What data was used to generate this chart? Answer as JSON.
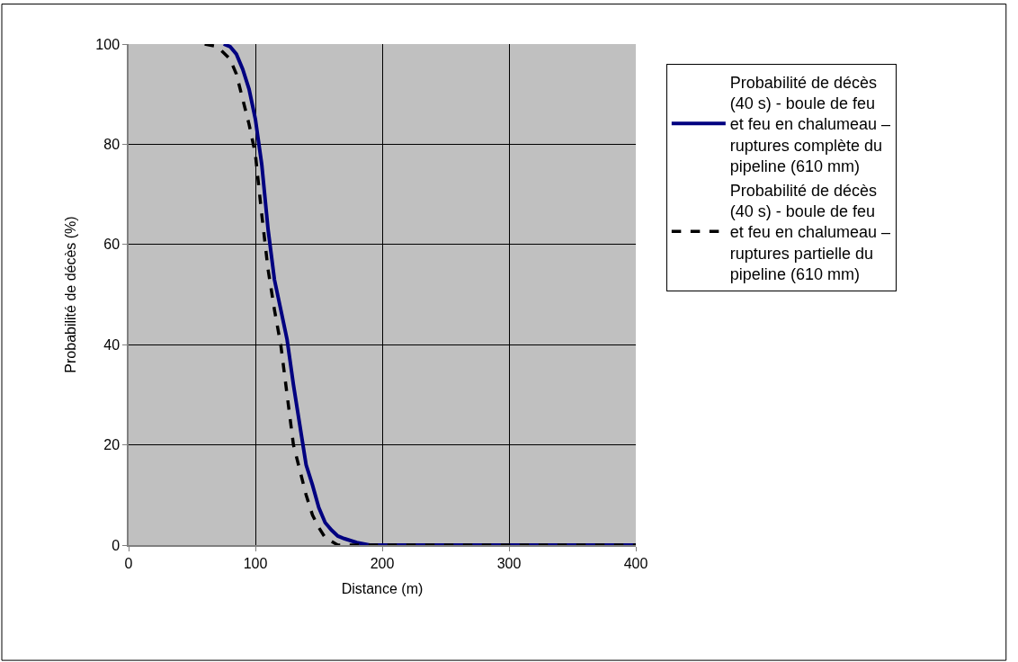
{
  "chart_data": {
    "type": "line",
    "xlabel": "Distance (m)",
    "ylabel": "Probabilité de décès (%)",
    "xlim": [
      0,
      400
    ],
    "xticks": [
      0,
      100,
      200,
      300,
      400
    ],
    "ylim": [
      0,
      100
    ],
    "yticks": [
      0,
      20,
      40,
      60,
      80,
      100
    ],
    "grid": true,
    "legend": "right",
    "marker": "none",
    "series": [
      {
        "name": "Probabilité de décès (40 s) - boule de feu et feu en chalumeau – ruptures complète du pipeline (610 mm)",
        "color": "#000080",
        "line_style": "solid",
        "x": [
          75,
          80,
          85,
          90,
          95,
          100,
          105,
          110,
          115,
          120,
          125,
          130,
          135,
          140,
          145,
          150,
          155,
          160,
          165,
          170,
          180,
          190,
          400
        ],
        "values": [
          100,
          99.5,
          98,
          95,
          91,
          85,
          76,
          63,
          53,
          47,
          41,
          32,
          24,
          16,
          12,
          7.5,
          4.5,
          3,
          1.8,
          1.3,
          0.5,
          0,
          0
        ]
      },
      {
        "name": "Probabilité de décès (40 s) - boule de feu et feu en chalumeau – ruptures partielle du pipeline (610 mm)",
        "color": "#000000",
        "line_style": "dashed",
        "x": [
          60,
          70,
          80,
          85,
          90,
          95,
          100,
          105,
          110,
          115,
          120,
          125,
          130,
          135,
          140,
          145,
          150,
          155,
          165,
          400
        ],
        "values": [
          100,
          99.5,
          97,
          94,
          89,
          84,
          78,
          66,
          55,
          47,
          40,
          30,
          20,
          15,
          10,
          6,
          3.5,
          1.5,
          0,
          0
        ]
      }
    ]
  }
}
